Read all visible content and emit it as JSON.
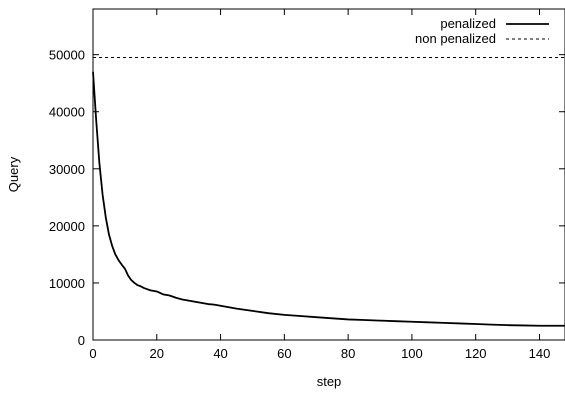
{
  "chart_data": {
    "type": "line",
    "title": "",
    "xlabel": "step",
    "ylabel": "Query",
    "xlim": [
      0,
      148
    ],
    "ylim": [
      0,
      58000
    ],
    "x_ticks": [
      0,
      20,
      40,
      60,
      80,
      100,
      120,
      140
    ],
    "y_ticks": [
      0,
      10000,
      20000,
      30000,
      40000,
      50000
    ],
    "grid": false,
    "legend_position": "top-right",
    "series": [
      {
        "name": "penalized",
        "style": "solid",
        "color": "#000000",
        "x": [
          0,
          1,
          2,
          3,
          4,
          5,
          6,
          7,
          8,
          9,
          10,
          11,
          12,
          13,
          14,
          15,
          16,
          17,
          18,
          19,
          20,
          22,
          24,
          26,
          28,
          30,
          32,
          34,
          36,
          38,
          40,
          45,
          50,
          55,
          60,
          65,
          70,
          75,
          80,
          85,
          90,
          95,
          100,
          105,
          110,
          115,
          120,
          125,
          130,
          135,
          140,
          145,
          148
        ],
        "y": [
          47000,
          38500,
          31000,
          25500,
          21500,
          18500,
          16500,
          15000,
          14000,
          13200,
          12500,
          11300,
          10500,
          10000,
          9600,
          9400,
          9100,
          8900,
          8700,
          8600,
          8500,
          8000,
          7800,
          7400,
          7100,
          6900,
          6700,
          6500,
          6300,
          6200,
          6000,
          5500,
          5100,
          4700,
          4400,
          4200,
          4000,
          3800,
          3600,
          3500,
          3400,
          3300,
          3200,
          3100,
          3000,
          2900,
          2800,
          2700,
          2600,
          2550,
          2500,
          2500,
          2500
        ]
      },
      {
        "name": "non penalized",
        "style": "dashed",
        "color": "#000000",
        "x": [
          0,
          148
        ],
        "y": [
          49500,
          49500
        ]
      }
    ]
  }
}
